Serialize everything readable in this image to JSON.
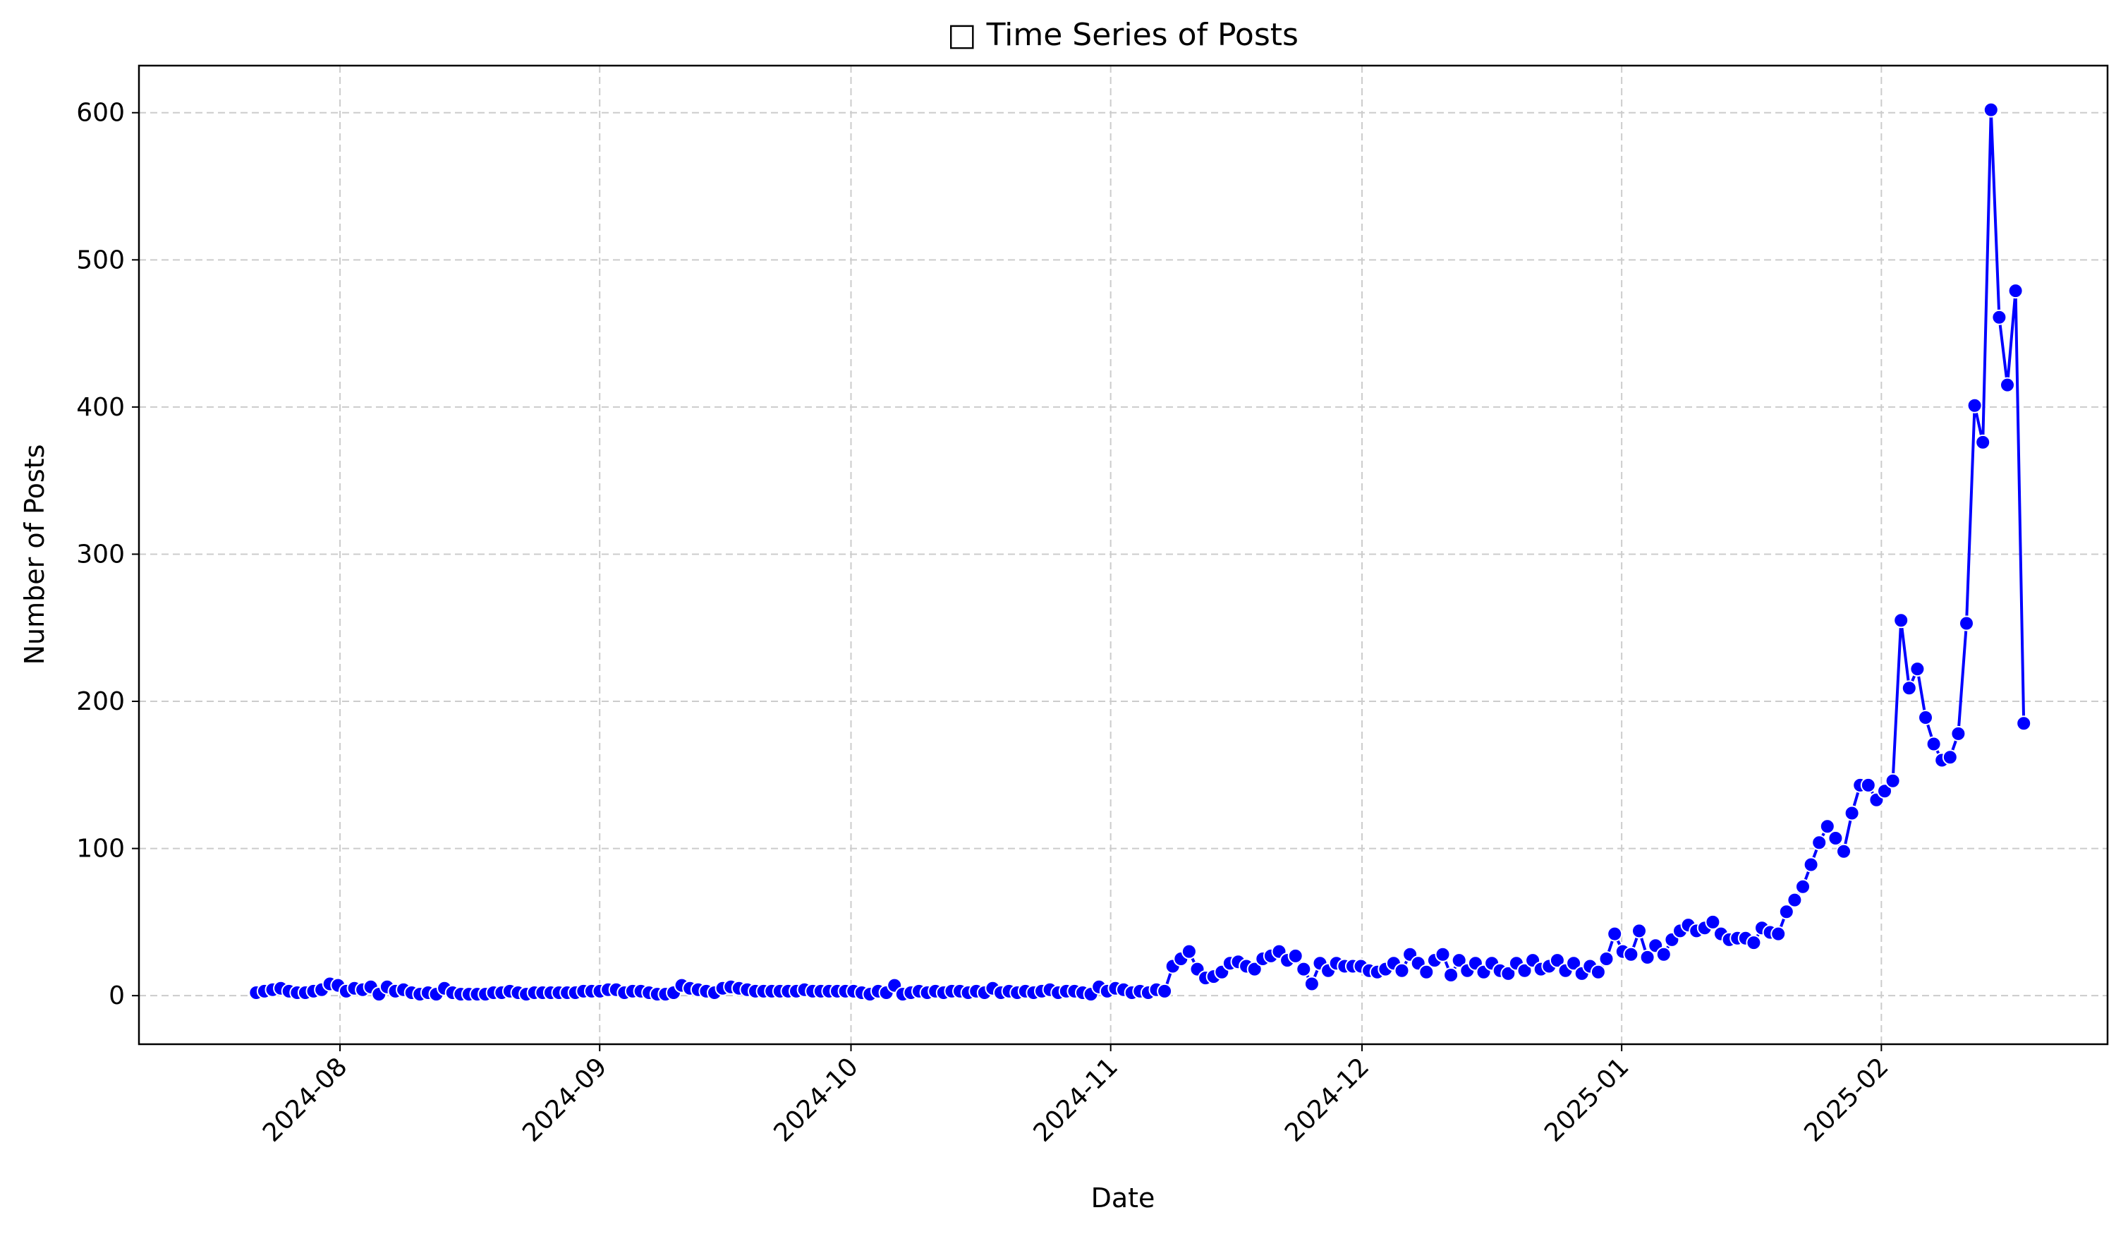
{
  "chart_data": {
    "type": "line",
    "title": "□ Time Series of Posts",
    "xlabel": "Date",
    "ylabel": "Number of Posts",
    "ylim": [
      -33,
      632
    ],
    "xlim": [
      "2024-07-08",
      "2025-02-28"
    ],
    "grid": true,
    "line_color": "#0000ff",
    "marker_color": "#0000ff",
    "y_ticks": [
      0,
      100,
      200,
      300,
      400,
      500,
      600
    ],
    "x_ticks": [
      {
        "date": "2024-08-01",
        "label": "2024-08"
      },
      {
        "date": "2024-09-01",
        "label": "2024-09"
      },
      {
        "date": "2024-10-01",
        "label": "2024-10"
      },
      {
        "date": "2024-11-01",
        "label": "2024-11"
      },
      {
        "date": "2024-12-01",
        "label": "2024-12"
      },
      {
        "date": "2025-01-01",
        "label": "2025-01"
      },
      {
        "date": "2025-02-01",
        "label": "2025-02"
      }
    ],
    "x_start": "2024-07-22",
    "x_end": "2025-02-18",
    "y": [
      2,
      3,
      4,
      5,
      3,
      2,
      2,
      3,
      4,
      8,
      7,
      3,
      5,
      4,
      6,
      1,
      6,
      3,
      4,
      2,
      1,
      2,
      1,
      5,
      2,
      1,
      1,
      1,
      1,
      2,
      2,
      3,
      2,
      1,
      2,
      2,
      2,
      2,
      2,
      2,
      3,
      3,
      3,
      4,
      4,
      2,
      3,
      3,
      2,
      1,
      1,
      2,
      7,
      5,
      4,
      3,
      2,
      5,
      6,
      5,
      4,
      3,
      3,
      3,
      3,
      3,
      3,
      4,
      3,
      3,
      3,
      3,
      3,
      3,
      2,
      1,
      3,
      2,
      7,
      1,
      2,
      3,
      2,
      3,
      2,
      3,
      3,
      2,
      3,
      2,
      5,
      2,
      3,
      2,
      3,
      2,
      3,
      4,
      2,
      3,
      3,
      2,
      1,
      6,
      3,
      5,
      4,
      2,
      3,
      2,
      4,
      3,
      20,
      25,
      30,
      18,
      12,
      13,
      16,
      22,
      23,
      20,
      18,
      25,
      27,
      30,
      24,
      27,
      18,
      8,
      22,
      17,
      22,
      20,
      20,
      20,
      17,
      16,
      18,
      22,
      17,
      28,
      22,
      16,
      24,
      28,
      14,
      24,
      17,
      22,
      16,
      22,
      17,
      15,
      22,
      17,
      24,
      18,
      20,
      24,
      17,
      22,
      15,
      20,
      16,
      25,
      42,
      30,
      28,
      44,
      26,
      34,
      28,
      38,
      44,
      48,
      44,
      46,
      50,
      42,
      38,
      39,
      39,
      36,
      46,
      43,
      42,
      57,
      65,
      74,
      89,
      104,
      115,
      107,
      98,
      124,
      143,
      143,
      133,
      139,
      146,
      255,
      209,
      222,
      189,
      171,
      160,
      162,
      178,
      253,
      401,
      376,
      602,
      461,
      415,
      479,
      185
    ]
  }
}
